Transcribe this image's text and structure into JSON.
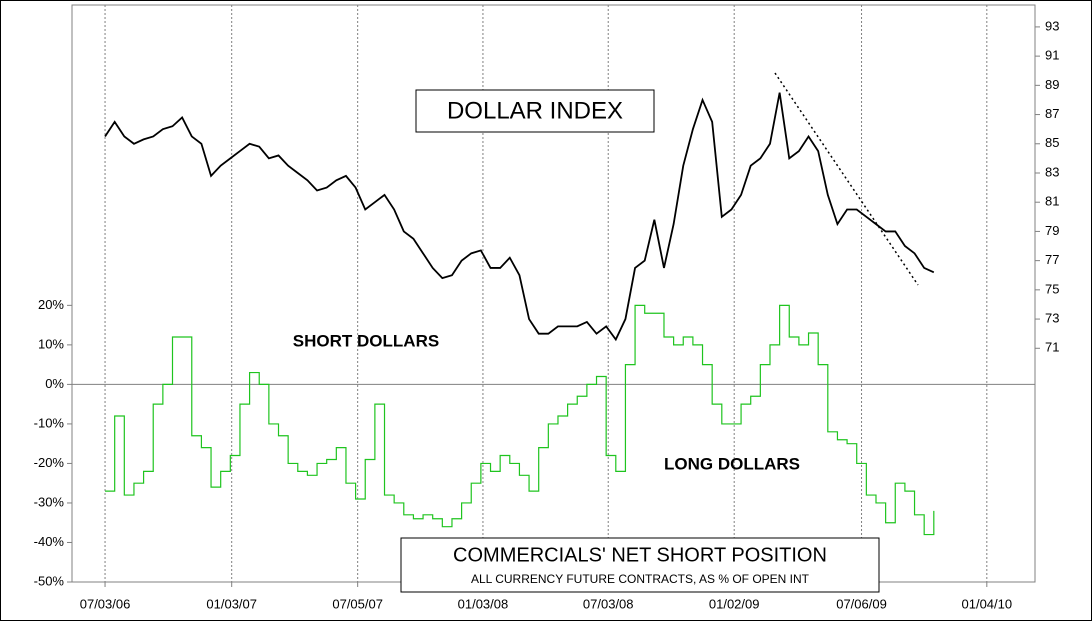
{
  "chart_data": {
    "type": "line",
    "title": "DOLLAR INDEX",
    "annotations": [
      "SHORT DOLLARS",
      "LONG DOLLARS"
    ],
    "caption": "COMMERCIALS' NET SHORT POSITION",
    "caption_sub": "ALL CURRENCY FUTURE CONTRACTS, AS % OF OPEN INT",
    "x": [
      "07/03/06",
      "07/17/06",
      "07/31/06",
      "08/14/06",
      "08/28/06",
      "09/11/06",
      "09/25/06",
      "10/09/06",
      "10/23/06",
      "11/06/06",
      "11/20/06",
      "12/04/06",
      "12/18/06",
      "01/01/07",
      "01/15/07",
      "01/29/07",
      "02/12/07",
      "02/26/07",
      "03/12/07",
      "03/26/07",
      "04/09/07",
      "04/23/07",
      "05/07/07",
      "05/21/07",
      "06/04/07",
      "06/18/07",
      "07/02/07",
      "07/16/07",
      "07/30/07",
      "08/13/07",
      "08/27/07",
      "09/10/07",
      "09/24/07",
      "10/08/07",
      "10/22/07",
      "11/05/07",
      "11/19/07",
      "12/03/07",
      "12/17/07",
      "12/31/07",
      "01/14/08",
      "01/28/08",
      "02/11/08",
      "02/25/08",
      "03/10/08",
      "03/24/08",
      "04/07/08",
      "04/21/08",
      "05/05/08",
      "05/19/08",
      "06/02/08",
      "06/16/08",
      "06/30/08",
      "07/14/08",
      "07/28/08",
      "08/11/08",
      "08/25/08",
      "09/08/08",
      "09/22/08",
      "10/06/08",
      "10/20/08",
      "11/03/08",
      "11/17/08",
      "12/01/08",
      "12/15/08",
      "12/29/08",
      "01/12/09",
      "01/26/09",
      "02/09/09",
      "02/23/09",
      "03/09/09",
      "03/23/09",
      "04/06/09",
      "04/20/09",
      "05/04/09",
      "05/18/09",
      "06/01/09",
      "06/15/09",
      "06/29/09",
      "07/13/09",
      "07/27/09",
      "08/10/09",
      "08/24/09",
      "09/07/09",
      "09/21/09",
      "10/05/09",
      "10/19/09"
    ],
    "series": [
      {
        "name": "DOLLAR INDEX",
        "color": "#000000",
        "axis": "y2",
        "values": [
          85.5,
          86.5,
          85.5,
          85,
          85.3,
          85.5,
          86,
          86.2,
          86.8,
          85.5,
          85,
          82.8,
          83.5,
          84,
          84.5,
          85,
          84.8,
          84,
          84.2,
          83.5,
          83,
          82.5,
          81.8,
          82,
          82.5,
          82.8,
          82,
          80.5,
          81,
          81.5,
          80.5,
          79,
          78.5,
          77.5,
          76.5,
          75.8,
          76,
          77,
          77.5,
          77.7,
          76.5,
          76.5,
          77.2,
          76,
          73,
          72,
          72,
          72.5,
          72.5,
          72.5,
          72.8,
          72,
          72.5,
          71.6,
          73,
          76.5,
          77,
          79.8,
          76.5,
          79.5,
          83.5,
          86,
          88,
          86.5,
          80,
          80.5,
          81.5,
          83.5,
          84,
          85,
          88.5,
          84,
          84.5,
          85.5,
          84.5,
          81.5,
          79.5,
          80.5,
          80.5,
          80,
          79.5,
          79,
          79,
          78,
          77.5,
          76.5,
          76.2
        ]
      },
      {
        "name": "COMMERCIALS' NET SHORT POSITION",
        "color": "#1fc41f",
        "axis": "y",
        "drawstyle": "steps-post",
        "values": [
          -27,
          -8,
          -28,
          -25,
          -22,
          -5,
          0,
          12,
          12,
          -13,
          -16,
          -26,
          -22,
          -18,
          -5,
          3,
          0,
          -10,
          -13,
          -20,
          -22,
          -23,
          -20,
          -19,
          -16,
          -25,
          -29,
          -19,
          -5,
          -28,
          -30,
          -33,
          -34,
          -33,
          -34,
          -36,
          -34,
          -30,
          -25,
          -20,
          -22,
          -18,
          -20,
          -23,
          -27,
          -16,
          -10,
          -8,
          -5,
          -3,
          0,
          2,
          -18,
          -22,
          5,
          20,
          18,
          18,
          12,
          10,
          12,
          10,
          5,
          -5,
          -10,
          -10,
          -5,
          -3,
          5,
          10,
          20,
          12,
          10,
          13,
          5,
          -12,
          -14,
          -15,
          -20,
          -28,
          -30,
          -35,
          -25,
          -27,
          -33,
          -38,
          -32
        ]
      }
    ],
    "xlim": [
      "05/16/06",
      "03/15/10"
    ],
    "xticks": [
      "07/03/06",
      "01/03/07",
      "07/05/07",
      "01/03/08",
      "07/03/08",
      "01/02/09",
      "07/06/09",
      "01/04/10"
    ],
    "ylim": [
      -50,
      96
    ],
    "yticks": [
      {
        "value": -50,
        "label": "-50%"
      },
      {
        "value": -40,
        "label": "-40%"
      },
      {
        "value": -30,
        "label": "-30%"
      },
      {
        "value": -20,
        "label": "-20%"
      },
      {
        "value": -10,
        "label": "-10%"
      },
      {
        "value": 0,
        "label": "0%"
      },
      {
        "value": 10,
        "label": "10%"
      },
      {
        "value": 20,
        "label": "20%"
      }
    ],
    "y2lim": [
      55,
      94.5
    ],
    "y2ticks": [
      71,
      73,
      75,
      77,
      79,
      81,
      83,
      85,
      87,
      89,
      91,
      93
    ],
    "grid": true
  }
}
